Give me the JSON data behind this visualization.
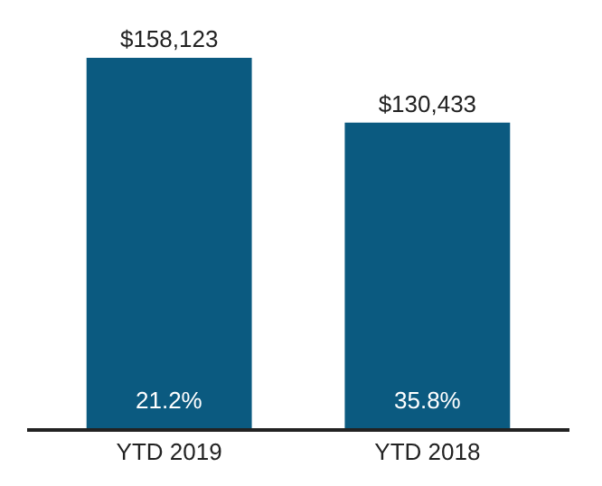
{
  "chart_data": {
    "type": "bar",
    "categories": [
      "YTD 2019",
      "YTD 2018"
    ],
    "values": [
      158123,
      130433
    ],
    "value_labels": [
      "$158,123",
      "$130,433"
    ],
    "color": "#0b5a80",
    "annotations": [
      "21.2%",
      "35.8%"
    ]
  }
}
